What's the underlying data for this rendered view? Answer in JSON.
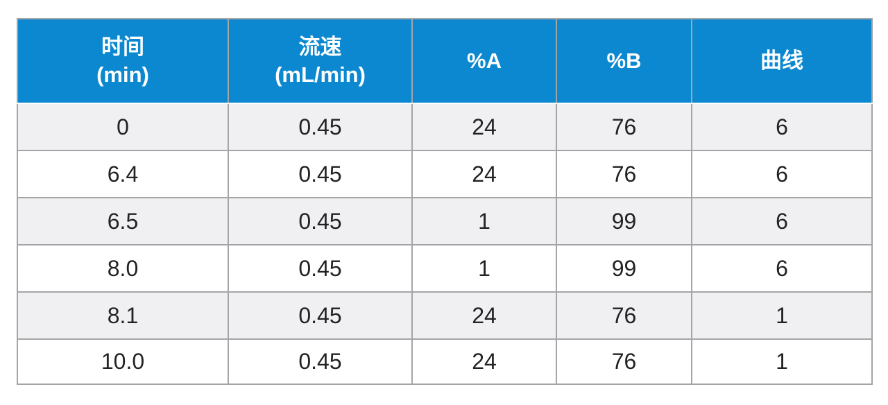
{
  "table": {
    "header": [
      [
        "时间",
        "(min)"
      ],
      [
        "流速",
        "(mL/min)"
      ],
      [
        "%A"
      ],
      [
        "%B"
      ],
      [
        "曲线"
      ]
    ],
    "rows": [
      [
        "0",
        "0.45",
        "24",
        "76",
        "6"
      ],
      [
        "6.4",
        "0.45",
        "24",
        "76",
        "6"
      ],
      [
        "6.5",
        "0.45",
        "1",
        "99",
        "6"
      ],
      [
        "8.0",
        "0.45",
        "1",
        "99",
        "6"
      ],
      [
        "8.1",
        "0.45",
        "24",
        "76",
        "1"
      ],
      [
        "10.0",
        "0.45",
        "24",
        "76",
        "1"
      ]
    ]
  }
}
